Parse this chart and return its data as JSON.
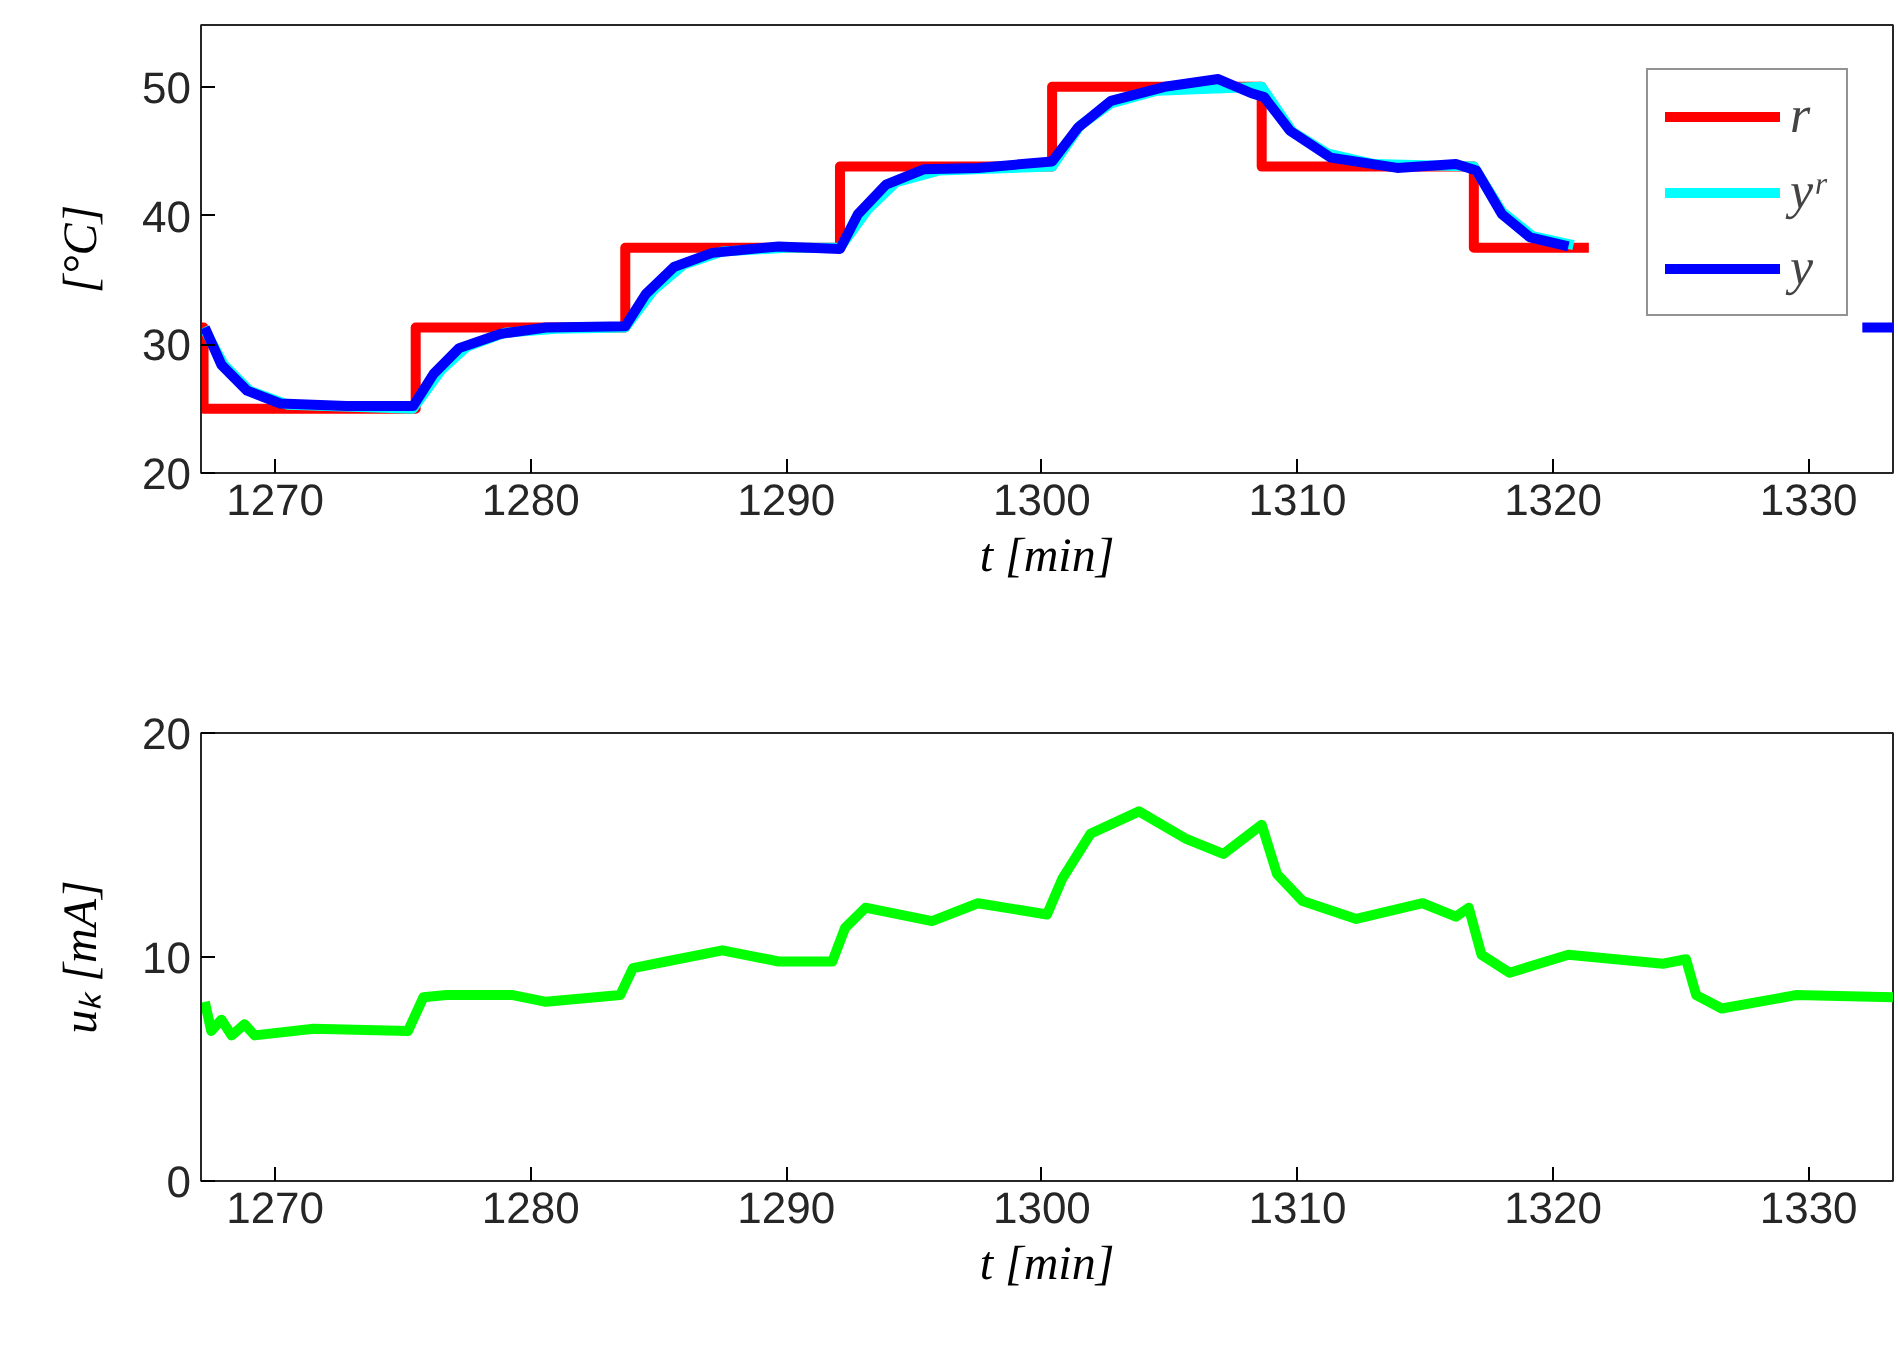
{
  "chart_data": [
    {
      "type": "line",
      "xlabel": "t [min]",
      "ylabel": "[°C]",
      "xlim": [
        1267.1,
        1333.3
      ],
      "xticks": [
        1270,
        1280,
        1290,
        1300,
        1310,
        1320,
        1330
      ],
      "ylim": [
        20,
        54.8
      ],
      "yticks": [
        20,
        30,
        40,
        50
      ],
      "grid": false,
      "legend": "top right",
      "line_style": "solid",
      "series": [
        {
          "name": "r",
          "type": "step",
          "color": "#ff0000",
          "x": [
            1267.1,
            1267.2,
            1275.5,
            1283.7,
            1292.1,
            1300.4,
            1308.6,
            1316.9,
            1321.4
          ],
          "values": [
            31.3,
            25,
            31.3,
            37.5,
            43.8,
            50,
            43.8,
            37.5,
            37.5
          ]
        },
        {
          "name": "yʳ",
          "color": "#00ffff",
          "x": [
            1267.2,
            1268,
            1269,
            1270.5,
            1275.4,
            1276.5,
            1277.5,
            1279,
            1281,
            1283.7,
            1284.8,
            1286,
            1287.5,
            1290,
            1292.1,
            1293.2,
            1294.3,
            1296,
            1300.4,
            1301.5,
            1302.7,
            1304.5,
            1308.6,
            1309.8,
            1311.2,
            1313,
            1316.9,
            1318,
            1319.2,
            1320.8
          ],
          "values": [
            31.3,
            28.4,
            26.4,
            25.3,
            25,
            28,
            29.8,
            30.9,
            31.2,
            31.3,
            34.2,
            36.2,
            37.2,
            37.5,
            37.5,
            40.5,
            42.6,
            43.5,
            43.8,
            47,
            48.7,
            49.7,
            50,
            46.5,
            44.8,
            44,
            43.8,
            40.3,
            38.4,
            37.7
          ]
        },
        {
          "name": "y",
          "color": "#0000ff",
          "x": [
            1267.25,
            1267.9,
            1268.9,
            1270.2,
            1272.8,
            1275.4,
            1276.2,
            1277.2,
            1278.8,
            1280.6,
            1283.7,
            1284.5,
            1285.6,
            1287.1,
            1289.7,
            1292.1,
            1292.8,
            1293.9,
            1295.4,
            1297.5,
            1300.4,
            1301.4,
            1302.7,
            1304.8,
            1306.9,
            1308.2,
            1308.7,
            1309.7,
            1311.3,
            1313.9,
            1316.2,
            1317,
            1318,
            1319.1,
            1320.6,
            1321.4,
            1332.1,
            1333.3
          ],
          "values": [
            31.3,
            28.4,
            26.4,
            25.4,
            25.2,
            25.2,
            27.7,
            29.7,
            30.8,
            31.3,
            31.4,
            33.9,
            36,
            37.1,
            37.6,
            37.4,
            40.1,
            42.4,
            43.6,
            43.7,
            44.2,
            46.8,
            48.9,
            50,
            50.6,
            49.5,
            49.2,
            46.6,
            44.5,
            43.7,
            44,
            43.5,
            40.1,
            38.3,
            37.6,
            null,
            31.3,
            31.3
          ]
        }
      ]
    },
    {
      "type": "line",
      "xlabel": "t [min]",
      "ylabel": "uₖ [mA]",
      "xlim": [
        1267.1,
        1333.3
      ],
      "xticks": [
        1270,
        1280,
        1290,
        1300,
        1310,
        1320,
        1330
      ],
      "ylim": [
        0,
        20
      ],
      "yticks": [
        0,
        10,
        20
      ],
      "grid": false,
      "line_style": "solid",
      "series": [
        {
          "color": "#00ff00",
          "x": [
            1267.25,
            1267.5,
            1267.9,
            1268.3,
            1268.8,
            1269.2,
            1271.5,
            1275.2,
            1275.8,
            1276.7,
            1279.3,
            1280.6,
            1283.5,
            1284,
            1285.3,
            1287.5,
            1289.7,
            1291.8,
            1292.3,
            1293.1,
            1295.7,
            1297.5,
            1300.2,
            1300.8,
            1301.9,
            1303.8,
            1305.6,
            1307.1,
            1308.6,
            1309.2,
            1310.2,
            1312.3,
            1314.9,
            1316.2,
            1316.7,
            1317.2,
            1318.3,
            1320.6,
            1324.3,
            1325.2,
            1325.6,
            1326.6,
            1329.5,
            1333.3
          ],
          "values": [
            8,
            6.7,
            7.2,
            6.5,
            7,
            6.5,
            6.8,
            6.7,
            8.2,
            8.3,
            8.3,
            8,
            8.3,
            9.5,
            9.8,
            10.3,
            9.8,
            9.8,
            11.3,
            12.2,
            11.6,
            12.4,
            11.9,
            13.5,
            15.5,
            16.5,
            15.3,
            14.6,
            15.9,
            13.7,
            12.5,
            11.7,
            12.4,
            11.8,
            12.2,
            10.1,
            9.3,
            10.1,
            9.7,
            9.9,
            8.3,
            7.7,
            8.3,
            8.2
          ]
        }
      ]
    }
  ]
}
